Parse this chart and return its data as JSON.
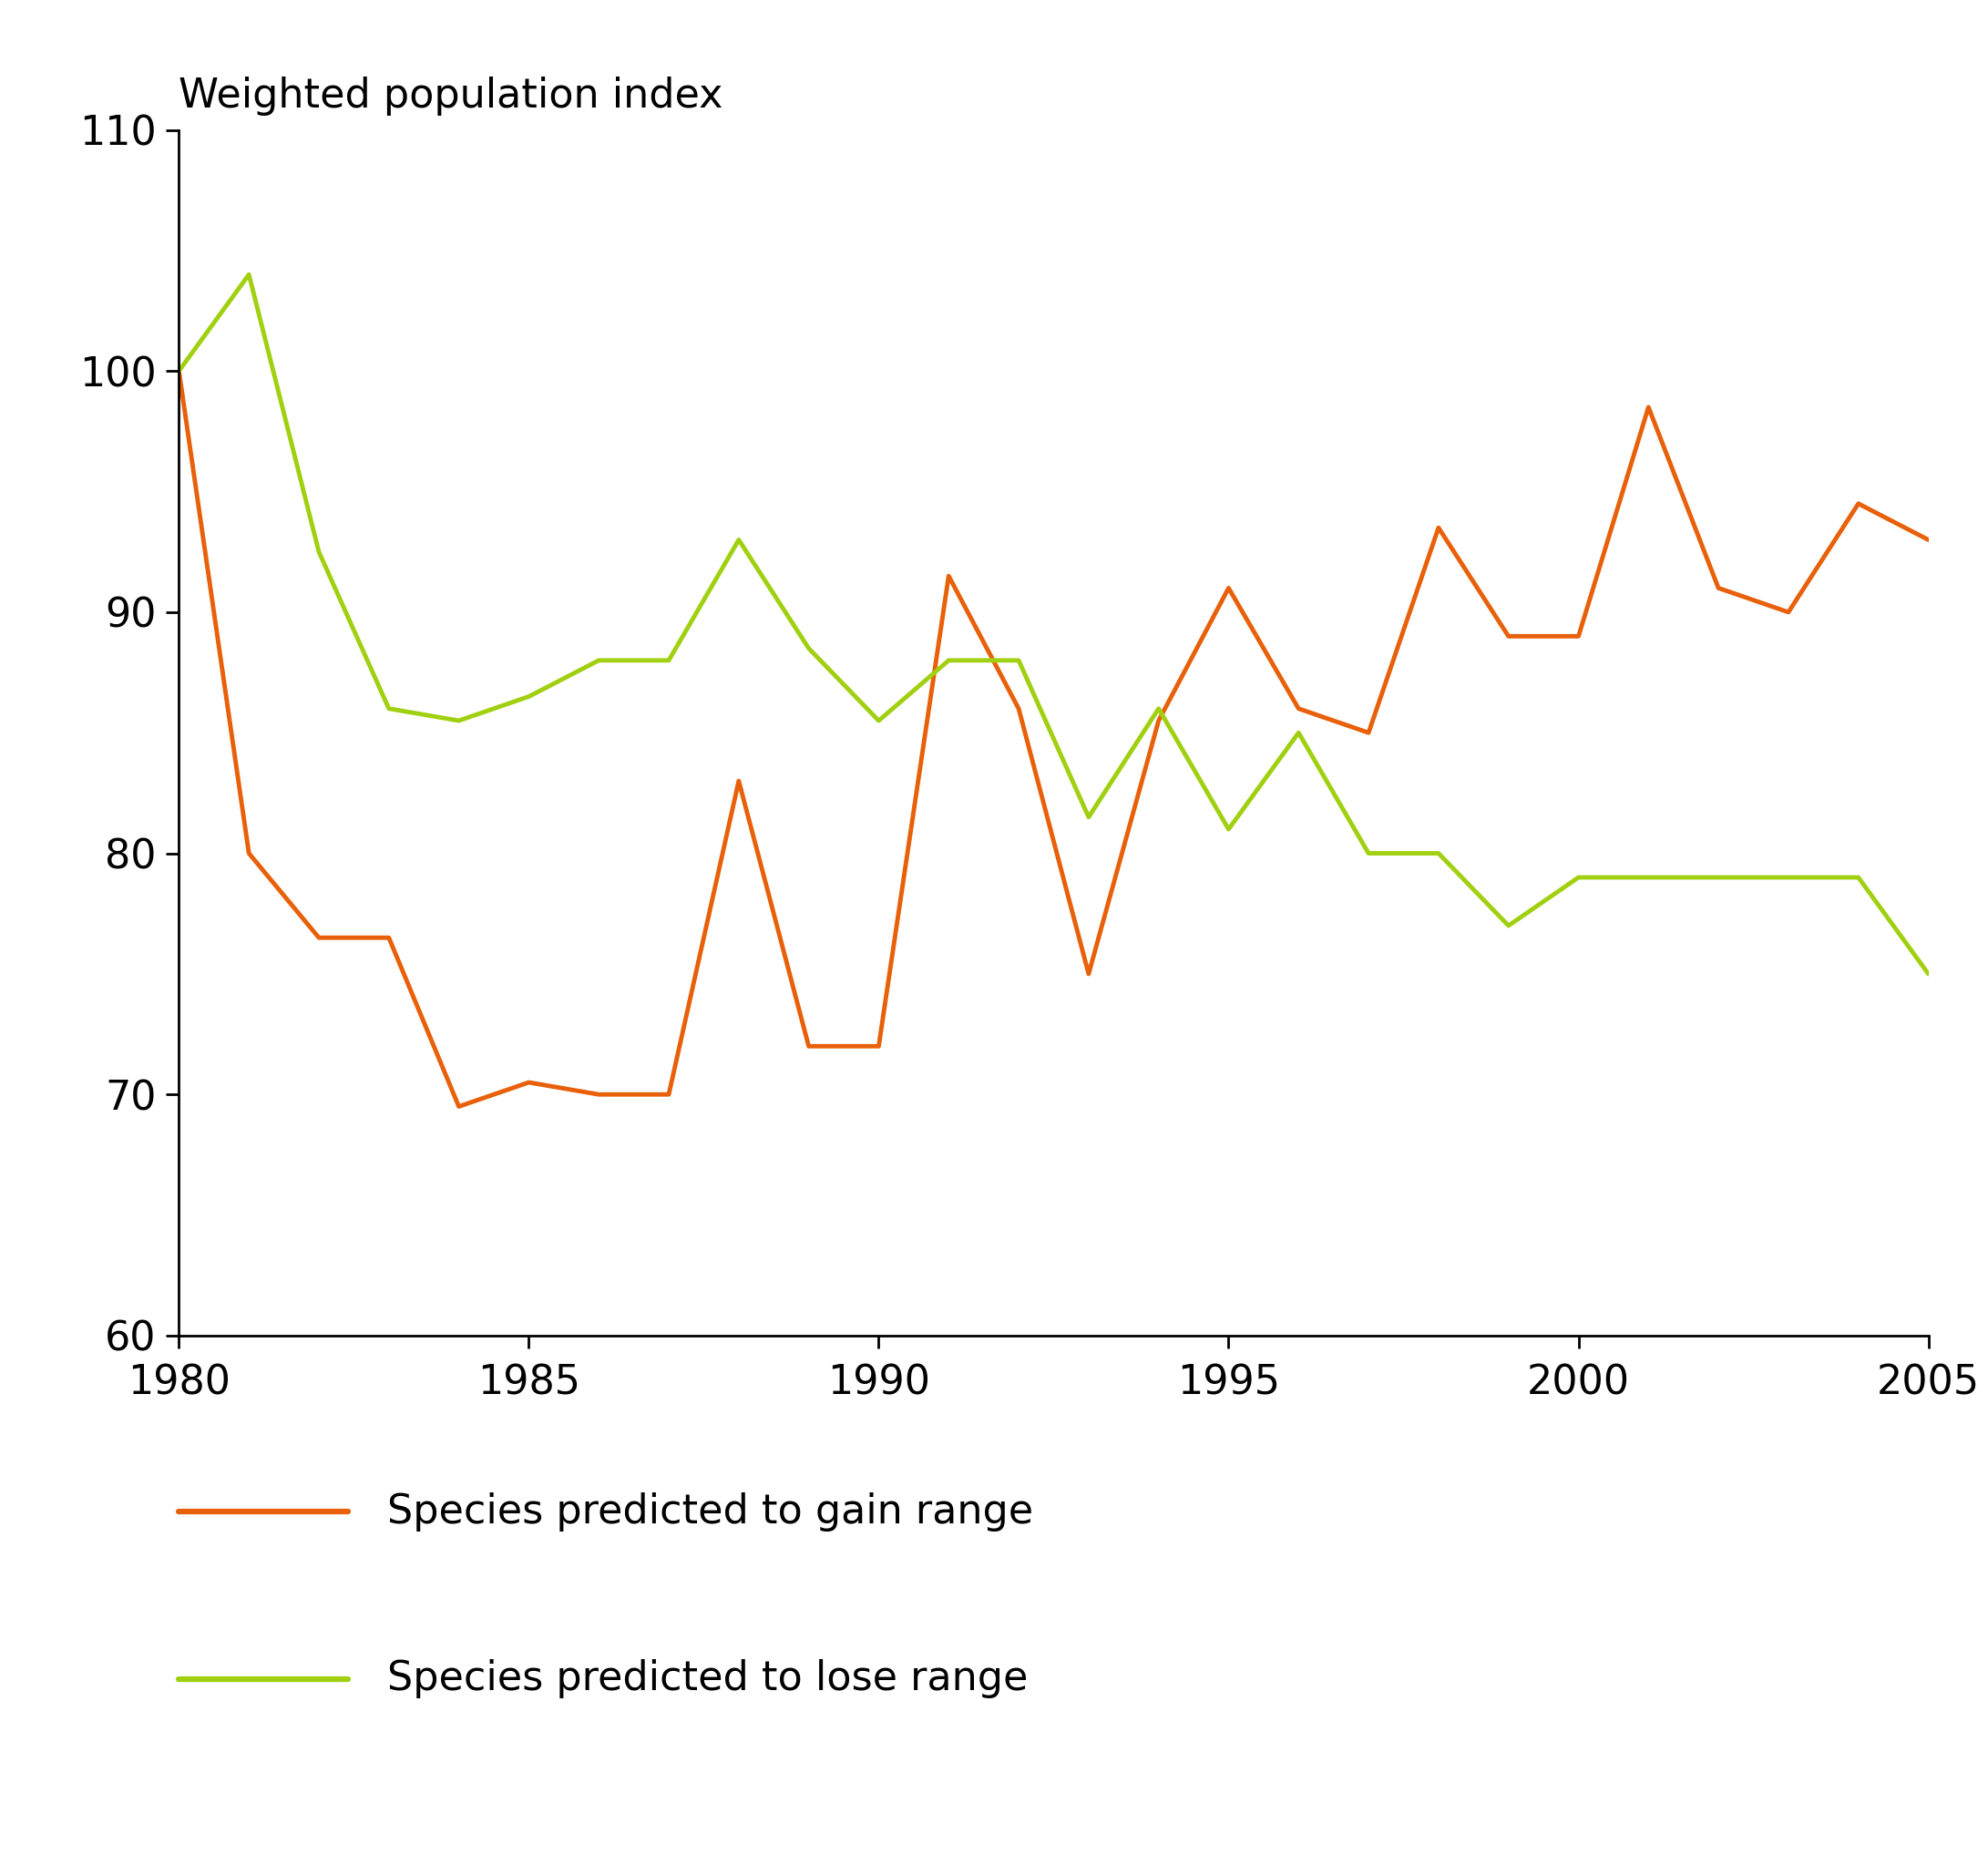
{
  "title": "Weighted population index",
  "xlim": [
    1980,
    2005
  ],
  "ylim": [
    60,
    110
  ],
  "yticks": [
    60,
    70,
    80,
    90,
    100,
    110
  ],
  "xticks": [
    1980,
    1985,
    1990,
    1995,
    2000,
    2005
  ],
  "gain_range": {
    "label": "Species predicted to gain range",
    "color": "#E8600A",
    "years": [
      1980,
      1981,
      1982,
      1983,
      1984,
      1985,
      1986,
      1987,
      1988,
      1989,
      1990,
      1991,
      1992,
      1993,
      1994,
      1995,
      1996,
      1997,
      1998,
      1999,
      2000,
      2001,
      2002,
      2003,
      2004,
      2005
    ],
    "values": [
      100,
      80,
      76.5,
      76.5,
      69.5,
      70.5,
      70,
      70,
      83,
      72,
      72,
      91.5,
      86,
      75,
      85.5,
      91,
      86,
      85,
      93.5,
      89,
      89,
      98.5,
      91,
      90,
      94.5,
      93
    ]
  },
  "lose_range": {
    "label": "Species predicted to lose range",
    "color": "#A0D010",
    "years": [
      1980,
      1981,
      1982,
      1983,
      1984,
      1985,
      1986,
      1987,
      1988,
      1989,
      1990,
      1991,
      1992,
      1993,
      1994,
      1995,
      1996,
      1997,
      1998,
      1999,
      2000,
      2001,
      2002,
      2003,
      2004,
      2005
    ],
    "values": [
      100,
      104,
      92.5,
      86,
      85.5,
      86.5,
      88,
      88,
      93,
      88.5,
      85.5,
      88,
      88,
      81.5,
      86,
      81,
      85,
      80,
      80,
      77,
      79,
      79,
      79,
      79,
      79,
      75
    ]
  },
  "background_color": "#ffffff",
  "linewidth": 3.5,
  "legend_fontsize": 32,
  "title_fontsize": 32,
  "tick_fontsize": 32
}
